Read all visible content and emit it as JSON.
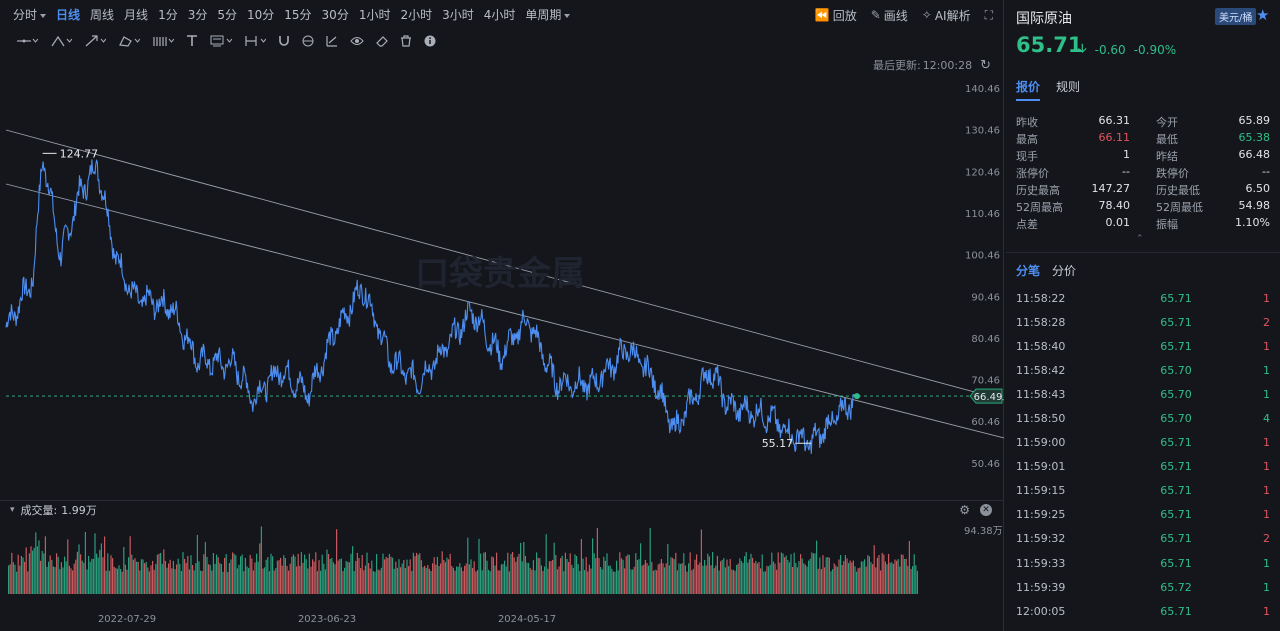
{
  "toolbar": {
    "timeframes": [
      {
        "label": "分时",
        "has_caret": true,
        "active": false
      },
      {
        "label": "日线",
        "has_caret": false,
        "active": true
      },
      {
        "label": "周线",
        "has_caret": false,
        "active": false
      },
      {
        "label": "月线",
        "has_caret": false,
        "active": false
      },
      {
        "label": "1分",
        "has_caret": false,
        "active": false
      },
      {
        "label": "3分",
        "has_caret": false,
        "active": false
      },
      {
        "label": "5分",
        "has_caret": false,
        "active": false
      },
      {
        "label": "10分",
        "has_caret": false,
        "active": false
      },
      {
        "label": "15分",
        "has_caret": false,
        "active": false
      },
      {
        "label": "30分",
        "has_caret": false,
        "active": false
      },
      {
        "label": "1小时",
        "has_caret": false,
        "active": false
      },
      {
        "label": "2小时",
        "has_caret": false,
        "active": false
      },
      {
        "label": "3小时",
        "has_caret": false,
        "active": false
      },
      {
        "label": "4小时",
        "has_caret": false,
        "active": false
      },
      {
        "label": "单周期",
        "has_caret": true,
        "active": false
      }
    ],
    "replay_label": "回放",
    "draw_label": "画线",
    "ai_label": "AI解析"
  },
  "last_update": {
    "label": "最后更新:",
    "time": "12:00:28"
  },
  "chart": {
    "y_ticks": [
      "140.46",
      "130.46",
      "120.46",
      "110.46",
      "100.46",
      "90.46",
      "80.46",
      "70.46",
      "60.46",
      "50.46"
    ],
    "current_price_tag": "66.49",
    "high_annotation": "124.77",
    "low_annotation": "55.17",
    "accent_color": "#4d8ef0"
  },
  "chart_data": {
    "type": "line",
    "y_axis_ticks": [
      50.46,
      60.46,
      70.46,
      80.46,
      90.46,
      100.46,
      110.46,
      120.46,
      130.46,
      140.46
    ],
    "x_tick_labels": [
      "2022-07-29",
      "2023-06-23",
      "2024-05-17"
    ],
    "annotations": [
      {
        "label": "124.77",
        "value": 124.77
      },
      {
        "label": "55.17",
        "value": 55.17
      }
    ],
    "price_tag": 66.49,
    "series_points": [
      {
        "x": 0,
        "y": 83
      },
      {
        "x": 0.03,
        "y": 95
      },
      {
        "x": 0.04,
        "y": 124.77
      },
      {
        "x": 0.06,
        "y": 100
      },
      {
        "x": 0.08,
        "y": 115
      },
      {
        "x": 0.1,
        "y": 122
      },
      {
        "x": 0.12,
        "y": 100
      },
      {
        "x": 0.14,
        "y": 90
      },
      {
        "x": 0.18,
        "y": 88
      },
      {
        "x": 0.21,
        "y": 75
      },
      {
        "x": 0.25,
        "y": 74
      },
      {
        "x": 0.27,
        "y": 66
      },
      {
        "x": 0.3,
        "y": 73
      },
      {
        "x": 0.33,
        "y": 67
      },
      {
        "x": 0.36,
        "y": 82
      },
      {
        "x": 0.39,
        "y": 93
      },
      {
        "x": 0.42,
        "y": 75
      },
      {
        "x": 0.45,
        "y": 70
      },
      {
        "x": 0.48,
        "y": 78
      },
      {
        "x": 0.51,
        "y": 87
      },
      {
        "x": 0.54,
        "y": 76
      },
      {
        "x": 0.57,
        "y": 85
      },
      {
        "x": 0.6,
        "y": 70
      },
      {
        "x": 0.64,
        "y": 69
      },
      {
        "x": 0.68,
        "y": 78
      },
      {
        "x": 0.71,
        "y": 70
      },
      {
        "x": 0.73,
        "y": 58
      },
      {
        "x": 0.77,
        "y": 73
      },
      {
        "x": 0.79,
        "y": 64
      },
      {
        "x": 0.83,
        "y": 62
      },
      {
        "x": 0.86,
        "y": 57
      },
      {
        "x": 0.88,
        "y": 55.17
      },
      {
        "x": 0.91,
        "y": 62
      },
      {
        "x": 0.93,
        "y": 66.49
      }
    ],
    "volume_max_label": "94.38万"
  },
  "volume": {
    "label": "成交量:",
    "value": "1.99万",
    "max_label": "94.38万"
  },
  "x_axis": [
    "2022-07-29",
    "2023-06-23",
    "2024-05-17"
  ],
  "quote": {
    "title": "国际原油",
    "unit": "美元/桶",
    "price": "65.71",
    "change": "-0.60",
    "change_pct": "-0.90%",
    "down_color": "#2fbf88",
    "up_color": "#e0565b"
  },
  "quote_tabs": [
    "报价",
    "规则"
  ],
  "stats": [
    [
      {
        "label": "昨收",
        "value": "66.31",
        "color": ""
      },
      {
        "label": "今开",
        "value": "65.89",
        "color": ""
      }
    ],
    [
      {
        "label": "最高",
        "value": "66.11",
        "color": "red"
      },
      {
        "label": "最低",
        "value": "65.38",
        "color": "green"
      }
    ],
    [
      {
        "label": "现手",
        "value": "1",
        "color": ""
      },
      {
        "label": "昨结",
        "value": "66.48",
        "color": ""
      }
    ],
    [
      {
        "label": "涨停价",
        "value": "--",
        "color": ""
      },
      {
        "label": "跌停价",
        "value": "--",
        "color": ""
      }
    ],
    [
      {
        "label": "历史最高",
        "value": "147.27",
        "color": ""
      },
      {
        "label": "历史最低",
        "value": "6.50",
        "color": ""
      }
    ],
    [
      {
        "label": "52周最高",
        "value": "78.40",
        "color": ""
      },
      {
        "label": "52周最低",
        "value": "54.98",
        "color": ""
      }
    ],
    [
      {
        "label": "点差",
        "value": "0.01",
        "color": ""
      },
      {
        "label": "振幅",
        "value": "1.10%",
        "color": ""
      }
    ]
  ],
  "trade_tabs": [
    "分笔",
    "分价"
  ],
  "trades": [
    {
      "time": "11:58:22",
      "price": "65.71",
      "vol": "1",
      "dir": "red"
    },
    {
      "time": "11:58:28",
      "price": "65.71",
      "vol": "2",
      "dir": "red"
    },
    {
      "time": "11:58:40",
      "price": "65.71",
      "vol": "1",
      "dir": "red"
    },
    {
      "time": "11:58:42",
      "price": "65.70",
      "vol": "1",
      "dir": "green"
    },
    {
      "time": "11:58:43",
      "price": "65.70",
      "vol": "1",
      "dir": "green"
    },
    {
      "time": "11:58:50",
      "price": "65.70",
      "vol": "4",
      "dir": "green"
    },
    {
      "time": "11:59:00",
      "price": "65.71",
      "vol": "1",
      "dir": "red"
    },
    {
      "time": "11:59:01",
      "price": "65.71",
      "vol": "1",
      "dir": "red"
    },
    {
      "time": "11:59:15",
      "price": "65.71",
      "vol": "1",
      "dir": "red"
    },
    {
      "time": "11:59:25",
      "price": "65.71",
      "vol": "1",
      "dir": "red"
    },
    {
      "time": "11:59:32",
      "price": "65.71",
      "vol": "2",
      "dir": "red"
    },
    {
      "time": "11:59:33",
      "price": "65.71",
      "vol": "1",
      "dir": "green"
    },
    {
      "time": "11:59:39",
      "price": "65.72",
      "vol": "1",
      "dir": "green"
    },
    {
      "time": "12:00:05",
      "price": "65.71",
      "vol": "1",
      "dir": "red"
    }
  ]
}
